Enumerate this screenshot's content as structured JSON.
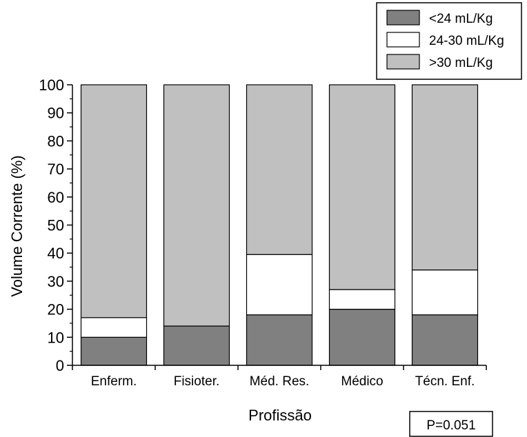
{
  "chart_data": {
    "type": "bar",
    "stacked": true,
    "categories": [
      "Enferm.",
      "Fisioter.",
      "Méd. Res.",
      "Médico",
      "Técn. Enf."
    ],
    "series": [
      {
        "name": "<24 mL/Kg",
        "values": [
          10,
          14,
          18,
          20,
          18
        ],
        "color": "#808080"
      },
      {
        "name": "24-30 mL/Kg",
        "values": [
          7,
          0,
          21.5,
          7,
          16
        ],
        "color": "#ffffff"
      },
      {
        "name": ">30 mL/Kg",
        "values": [
          83,
          86,
          60.5,
          73,
          66
        ],
        "color": "#c0c0c0"
      }
    ],
    "ylim": [
      0,
      100
    ],
    "yticks": [
      0,
      10,
      20,
      30,
      40,
      50,
      60,
      70,
      80,
      90,
      100
    ],
    "xlabel": "Profissão",
    "ylabel": "Volume Corrente (%)",
    "legend_position": "top-right",
    "grid": false,
    "annotation": "P=0.051"
  }
}
